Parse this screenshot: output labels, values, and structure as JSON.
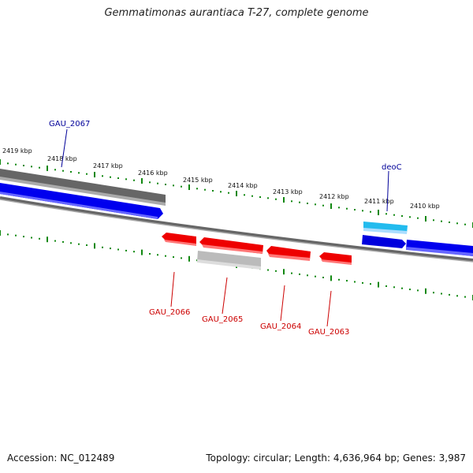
{
  "title": "Gemmatimonas aurantiaca T-27, complete genome",
  "footer": {
    "accession": "Accession: NC_012489",
    "topology": "Topology: circular; Length: 4,636,964 bp; Genes: 3,987"
  },
  "colors": {
    "forward_gene": "#0000ee",
    "reverse_gene": "#ee0000",
    "rna_gene": "#22bbee",
    "pseudo_gene": "#777777",
    "backbone": "#777777",
    "ticks": "#118811",
    "forward_label": "#000099",
    "reverse_label": "#cc0000"
  },
  "ruler": {
    "unit": "kbp",
    "labels": [
      "2419 kbp",
      "2418 kbp",
      "2417 kbp",
      "2416 kbp",
      "2415 kbp",
      "2414 kbp",
      "2413 kbp",
      "2412 kbp",
      "2411 kbp",
      "2410 kbp"
    ]
  },
  "genes": [
    {
      "name": "GAU_2067",
      "strand": "forward",
      "type": "pseudo"
    },
    {
      "name": "deoC",
      "strand": "forward",
      "type": "rna"
    },
    {
      "name": "GAU_2066",
      "strand": "reverse",
      "type": "cds"
    },
    {
      "name": "GAU_2065",
      "strand": "reverse",
      "type": "cds"
    },
    {
      "name": "GAU_2064",
      "strand": "reverse",
      "type": "cds"
    },
    {
      "name": "GAU_2063",
      "strand": "reverse",
      "type": "cds"
    }
  ]
}
